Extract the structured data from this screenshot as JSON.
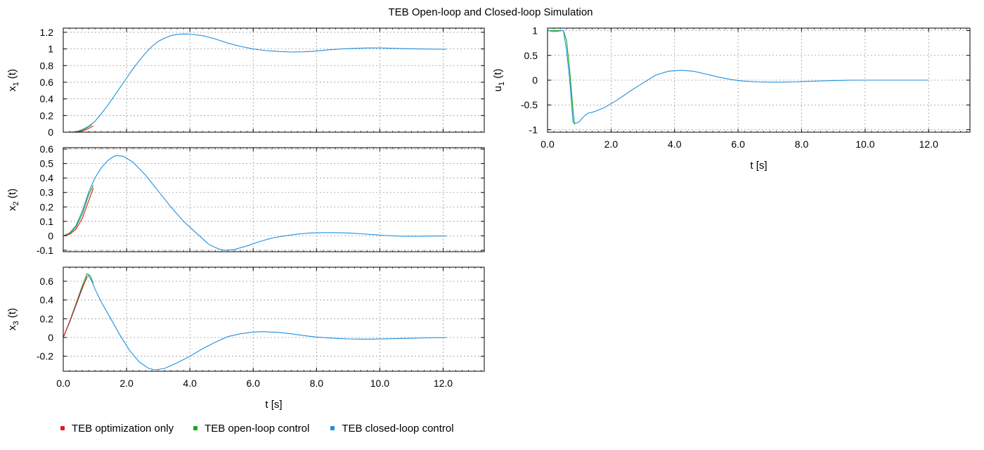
{
  "title": "TEB Open-loop and Closed-loop Simulation",
  "legend": [
    {
      "label": "TEB optimization only",
      "color": "#e41a1c"
    },
    {
      "label": "TEB open-loop control",
      "color": "#18a818"
    },
    {
      "label": "TEB closed-loop control",
      "color": "#1f8fe0"
    }
  ],
  "chart_data": [
    {
      "type": "line",
      "name": "x1",
      "ylabel": [
        "x",
        "1",
        " (t)"
      ],
      "xlabel": "",
      "xlim": [
        0,
        13.3
      ],
      "ylim": [
        0,
        1.25
      ],
      "xticks": [
        "0.0",
        "2.0",
        "4.0",
        "6.0",
        "8.0",
        "10.0",
        "12.0"
      ],
      "xtick_values": [
        0,
        2,
        4,
        6,
        8,
        10,
        12
      ],
      "show_xticklabels": false,
      "yticks": [
        0,
        0.2,
        0.4,
        0.6,
        0.8,
        1,
        1.2
      ],
      "ytick_labels": [
        "0",
        "0.2",
        "0.4",
        "0.6",
        "0.8",
        "1",
        "1.2"
      ],
      "grid": true,
      "series": [
        {
          "ref": 2,
          "points": [
            [
              0,
              0
            ],
            [
              0.2,
              0
            ],
            [
              0.4,
              0.005
            ],
            [
              0.6,
              0.03
            ],
            [
              0.8,
              0.07
            ],
            [
              1.0,
              0.13
            ],
            [
              1.2,
              0.22
            ],
            [
              1.4,
              0.32
            ],
            [
              1.6,
              0.43
            ],
            [
              1.8,
              0.54
            ],
            [
              2.0,
              0.65
            ],
            [
              2.2,
              0.76
            ],
            [
              2.4,
              0.86
            ],
            [
              2.6,
              0.95
            ],
            [
              2.8,
              1.03
            ],
            [
              3.0,
              1.09
            ],
            [
              3.2,
              1.13
            ],
            [
              3.4,
              1.16
            ],
            [
              3.6,
              1.175
            ],
            [
              3.8,
              1.18
            ],
            [
              4.0,
              1.178
            ],
            [
              4.4,
              1.16
            ],
            [
              4.8,
              1.12
            ],
            [
              5.2,
              1.07
            ],
            [
              5.6,
              1.03
            ],
            [
              6.0,
              1.0
            ],
            [
              6.4,
              0.98
            ],
            [
              6.8,
              0.97
            ],
            [
              7.2,
              0.963
            ],
            [
              7.6,
              0.965
            ],
            [
              8.0,
              0.975
            ],
            [
              8.4,
              0.99
            ],
            [
              8.8,
              1.0
            ],
            [
              9.2,
              1.007
            ],
            [
              9.6,
              1.012
            ],
            [
              10.0,
              1.012
            ],
            [
              10.4,
              1.008
            ],
            [
              10.8,
              1.003
            ],
            [
              11.2,
              1.0
            ],
            [
              11.6,
              0.998
            ],
            [
              12.1,
              0.997
            ]
          ]
        },
        {
          "ref": 1,
          "points": [
            [
              0.3,
              0
            ],
            [
              0.5,
              0.01
            ],
            [
              0.7,
              0.04
            ],
            [
              0.9,
              0.09
            ]
          ]
        },
        {
          "ref": 0,
          "points": [
            [
              0.3,
              0
            ],
            [
              0.5,
              0.005
            ],
            [
              0.7,
              0.025
            ],
            [
              0.9,
              0.065
            ],
            [
              0.95,
              0.075
            ]
          ]
        }
      ]
    },
    {
      "type": "line",
      "name": "x2",
      "ylabel": [
        "x",
        "2",
        " (t)"
      ],
      "xlabel": "",
      "xlim": [
        0,
        13.3
      ],
      "ylim": [
        -0.11,
        0.61
      ],
      "xticks": [
        "0.0",
        "2.0",
        "4.0",
        "6.0",
        "8.0",
        "10.0",
        "12.0"
      ],
      "xtick_values": [
        0,
        2,
        4,
        6,
        8,
        10,
        12
      ],
      "show_xticklabels": false,
      "yticks": [
        -0.1,
        0,
        0.1,
        0.2,
        0.3,
        0.4,
        0.5,
        0.6
      ],
      "ytick_labels": [
        "-0.1",
        "0",
        "0.1",
        "0.2",
        "0.3",
        "0.4",
        "0.5",
        "0.6"
      ],
      "grid": true,
      "series": [
        {
          "ref": 2,
          "points": [
            [
              0,
              0
            ],
            [
              0.2,
              0.02
            ],
            [
              0.4,
              0.07
            ],
            [
              0.6,
              0.17
            ],
            [
              0.8,
              0.3
            ],
            [
              1.0,
              0.4
            ],
            [
              1.2,
              0.47
            ],
            [
              1.4,
              0.52
            ],
            [
              1.6,
              0.55
            ],
            [
              1.7,
              0.555
            ],
            [
              1.9,
              0.55
            ],
            [
              2.2,
              0.51
            ],
            [
              2.6,
              0.42
            ],
            [
              3.0,
              0.31
            ],
            [
              3.4,
              0.2
            ],
            [
              3.8,
              0.1
            ],
            [
              4.2,
              0.02
            ],
            [
              4.6,
              -0.06
            ],
            [
              4.9,
              -0.09
            ],
            [
              5.1,
              -0.1
            ],
            [
              5.4,
              -0.095
            ],
            [
              5.8,
              -0.07
            ],
            [
              6.2,
              -0.04
            ],
            [
              6.6,
              -0.015
            ],
            [
              7.0,
              0.0
            ],
            [
              7.4,
              0.012
            ],
            [
              7.8,
              0.02
            ],
            [
              8.2,
              0.022
            ],
            [
              8.6,
              0.022
            ],
            [
              9.0,
              0.02
            ],
            [
              9.4,
              0.014
            ],
            [
              9.8,
              0.008
            ],
            [
              10.2,
              0.002
            ],
            [
              10.6,
              -0.002
            ],
            [
              11.0,
              -0.003
            ],
            [
              11.5,
              -0.002
            ],
            [
              12.1,
              -0.001
            ]
          ]
        },
        {
          "ref": 1,
          "points": [
            [
              0,
              0
            ],
            [
              0.2,
              0.015
            ],
            [
              0.4,
              0.06
            ],
            [
              0.6,
              0.15
            ],
            [
              0.8,
              0.28
            ],
            [
              0.95,
              0.35
            ]
          ]
        },
        {
          "ref": 0,
          "points": [
            [
              0,
              0
            ],
            [
              0.2,
              0.01
            ],
            [
              0.4,
              0.045
            ],
            [
              0.6,
              0.12
            ],
            [
              0.8,
              0.24
            ],
            [
              0.95,
              0.33
            ]
          ]
        }
      ]
    },
    {
      "type": "line",
      "name": "x3",
      "ylabel": [
        "x",
        "3",
        " (t)"
      ],
      "xlabel": "t [s]",
      "xlim": [
        0,
        13.3
      ],
      "ylim": [
        -0.36,
        0.75
      ],
      "xticks": [
        "0.0",
        "2.0",
        "4.0",
        "6.0",
        "8.0",
        "10.0",
        "12.0"
      ],
      "xtick_values": [
        0,
        2,
        4,
        6,
        8,
        10,
        12
      ],
      "show_xticklabels": true,
      "yticks": [
        -0.2,
        0,
        0.2,
        0.4,
        0.6
      ],
      "ytick_labels": [
        "-0.2",
        "0",
        "0.2",
        "0.4",
        "0.6"
      ],
      "grid": true,
      "series": [
        {
          "ref": 2,
          "points": [
            [
              0,
              0
            ],
            [
              0.2,
              0.16
            ],
            [
              0.4,
              0.34
            ],
            [
              0.6,
              0.52
            ],
            [
              0.75,
              0.65
            ],
            [
              0.8,
              0.66
            ],
            [
              0.9,
              0.6
            ],
            [
              1.0,
              0.52
            ],
            [
              1.2,
              0.38
            ],
            [
              1.5,
              0.2
            ],
            [
              1.8,
              0.02
            ],
            [
              2.1,
              -0.14
            ],
            [
              2.4,
              -0.26
            ],
            [
              2.7,
              -0.33
            ],
            [
              2.9,
              -0.345
            ],
            [
              3.2,
              -0.33
            ],
            [
              3.6,
              -0.27
            ],
            [
              4.0,
              -0.2
            ],
            [
              4.4,
              -0.12
            ],
            [
              4.8,
              -0.05
            ],
            [
              5.2,
              0.01
            ],
            [
              5.6,
              0.04
            ],
            [
              6.0,
              0.058
            ],
            [
              6.3,
              0.062
            ],
            [
              6.8,
              0.055
            ],
            [
              7.2,
              0.04
            ],
            [
              7.6,
              0.02
            ],
            [
              8.0,
              0.005
            ],
            [
              8.5,
              -0.007
            ],
            [
              9.0,
              -0.015
            ],
            [
              9.5,
              -0.018
            ],
            [
              10.0,
              -0.016
            ],
            [
              10.5,
              -0.012
            ],
            [
              11.0,
              -0.008
            ],
            [
              11.5,
              -0.004
            ],
            [
              12.1,
              -0.001
            ]
          ]
        },
        {
          "ref": 1,
          "points": [
            [
              0,
              0
            ],
            [
              0.2,
              0.17
            ],
            [
              0.4,
              0.36
            ],
            [
              0.6,
              0.55
            ],
            [
              0.75,
              0.68
            ],
            [
              0.85,
              0.66
            ],
            [
              0.95,
              0.58
            ]
          ]
        },
        {
          "ref": 0,
          "points": [
            [
              0,
              0
            ],
            [
              0.2,
              0.17
            ],
            [
              0.4,
              0.35
            ],
            [
              0.6,
              0.53
            ],
            [
              0.75,
              0.64
            ]
          ]
        }
      ]
    },
    {
      "type": "line",
      "name": "u1",
      "ylabel": [
        "u",
        "1",
        " (t)"
      ],
      "xlabel": "t [s]",
      "xlim": [
        0,
        13.3
      ],
      "ylim": [
        -1.05,
        1.05
      ],
      "xticks": [
        "0.0",
        "2.0",
        "4.0",
        "6.0",
        "8.0",
        "10.0",
        "12.0"
      ],
      "xtick_values": [
        0,
        2,
        4,
        6,
        8,
        10,
        12
      ],
      "show_xticklabels": true,
      "yticks": [
        -1,
        -0.5,
        0,
        0.5,
        1
      ],
      "ytick_labels": [
        "-1",
        "-0.5",
        "0",
        "0.5",
        "1"
      ],
      "grid": true,
      "series": [
        {
          "ref": 1,
          "points": [
            [
              0,
              1
            ],
            [
              0.5,
              1
            ],
            [
              0.6,
              0.8
            ],
            [
              0.7,
              0.2
            ],
            [
              0.8,
              -0.6
            ],
            [
              0.85,
              -0.9
            ]
          ]
        },
        {
          "ref": 2,
          "points": [
            [
              0,
              1
            ],
            [
              0.2,
              0.98
            ],
            [
              0.5,
              1.0
            ],
            [
              0.6,
              0.6
            ],
            [
              0.7,
              0.0
            ],
            [
              0.8,
              -0.85
            ],
            [
              0.9,
              -0.87
            ],
            [
              1.0,
              -0.84
            ],
            [
              1.1,
              -0.76
            ],
            [
              1.2,
              -0.7
            ],
            [
              1.3,
              -0.66
            ],
            [
              1.4,
              -0.65
            ],
            [
              1.5,
              -0.63
            ],
            [
              1.8,
              -0.55
            ],
            [
              2.2,
              -0.4
            ],
            [
              2.6,
              -0.22
            ],
            [
              3.0,
              -0.06
            ],
            [
              3.4,
              0.1
            ],
            [
              3.8,
              0.18
            ],
            [
              4.2,
              0.2
            ],
            [
              4.6,
              0.18
            ],
            [
              5.0,
              0.12
            ],
            [
              5.4,
              0.06
            ],
            [
              5.8,
              0.01
            ],
            [
              6.2,
              -0.02
            ],
            [
              6.6,
              -0.035
            ],
            [
              7.0,
              -0.04
            ],
            [
              7.4,
              -0.04
            ],
            [
              7.8,
              -0.035
            ],
            [
              8.2,
              -0.025
            ],
            [
              8.6,
              -0.015
            ],
            [
              9.0,
              -0.008
            ],
            [
              9.5,
              -0.002
            ],
            [
              10.0,
              0.0
            ],
            [
              10.5,
              0.0
            ],
            [
              11.0,
              0.0
            ],
            [
              11.5,
              0.0
            ],
            [
              12.0,
              0.0
            ]
          ]
        }
      ]
    }
  ]
}
